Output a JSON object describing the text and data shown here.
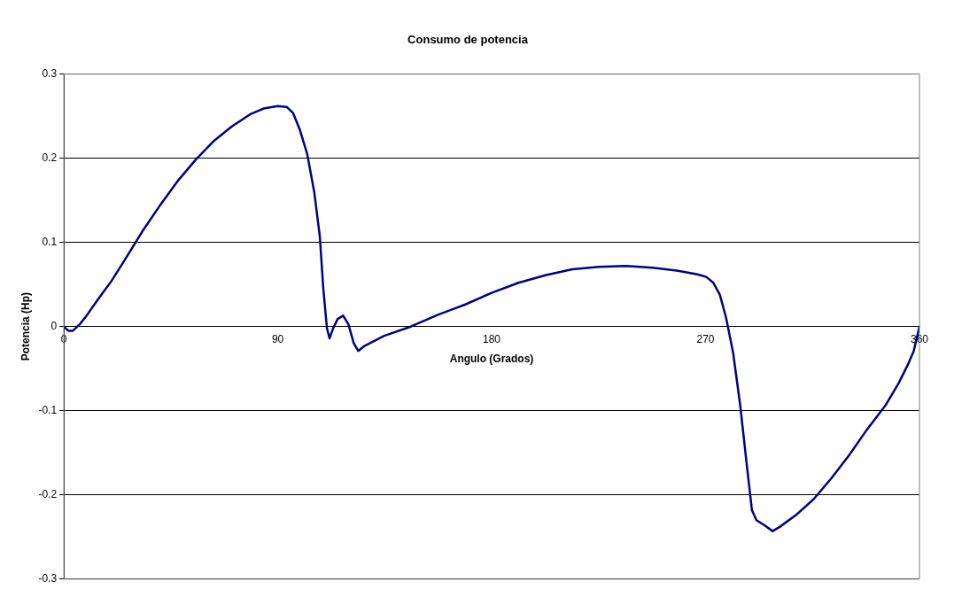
{
  "chart_data": {
    "type": "line",
    "title": "Consumo de potencia",
    "xlabel": "Angulo (Grados)",
    "ylabel": "Potencia (Hp)",
    "xlim": [
      0,
      360
    ],
    "xticks": [
      0,
      90,
      180,
      270,
      360
    ],
    "ylim": [
      -0.3,
      0.3
    ],
    "yticks": [
      -0.3,
      -0.2,
      -0.1,
      0,
      0.1,
      0.2,
      0.3
    ],
    "grid": "y",
    "legend": false,
    "marker": "none",
    "line_style": "solid",
    "series": [
      {
        "color": "#000080",
        "x": [
          0,
          1.9,
          3.8,
          6.8,
          9.8,
          14.3,
          20,
          25.6,
          33,
          40.7,
          48.2,
          55.7,
          63.3,
          70.8,
          78.3,
          84,
          90,
          93.7,
          96.4,
          99.4,
          102.4,
          105.4,
          107.7,
          109.2,
          110.7,
          111.8,
          113.3,
          115.2,
          117.5,
          119.7,
          122,
          123.9,
          126.5,
          134.8,
          146,
          157.4,
          168.7,
          180,
          191.3,
          202.6,
          213.9,
          225.2,
          236.5,
          247.8,
          259,
          266.6,
          270.3,
          273.3,
          276,
          278.6,
          281.6,
          284.6,
          287.3,
          289.5,
          291.4,
          294.8,
          298.2,
          301.2,
          308,
          315.5,
          323,
          330.6,
          338,
          345.6,
          351.3,
          355,
          357.6,
          360
        ],
        "values": [
          0,
          -0.005,
          -0.005,
          0.003,
          0.014,
          0.032,
          0.054,
          0.079,
          0.113,
          0.145,
          0.174,
          0.199,
          0.221,
          0.238,
          0.252,
          0.259,
          0.262,
          0.261,
          0.254,
          0.233,
          0.205,
          0.159,
          0.107,
          0.044,
          -0.002,
          -0.014,
          -0.002,
          0.009,
          0.013,
          0.003,
          -0.02,
          -0.029,
          -0.023,
          -0.011,
          0,
          0.014,
          0.026,
          0.04,
          0.052,
          0.061,
          0.068,
          0.071,
          0.072,
          0.07,
          0.066,
          0.062,
          0.059,
          0.052,
          0.038,
          0.011,
          -0.031,
          -0.094,
          -0.163,
          -0.218,
          -0.23,
          -0.236,
          -0.243,
          -0.238,
          -0.224,
          -0.205,
          -0.18,
          -0.152,
          -0.122,
          -0.094,
          -0.067,
          -0.046,
          -0.029,
          0
        ]
      }
    ]
  }
}
